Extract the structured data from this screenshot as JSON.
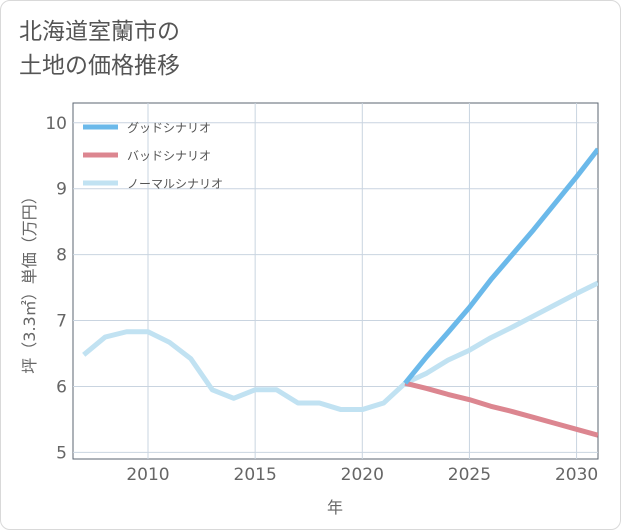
{
  "title_lines": [
    "北海道室蘭市の",
    "土地の価格推移"
  ],
  "chart_data": {
    "type": "line",
    "title": "北海道室蘭市の土地の価格推移",
    "xlabel": "年",
    "ylabel": "坪（3.3㎡）単価（万円）",
    "xlim": [
      2006.5,
      2031
    ],
    "ylim": [
      4.9,
      10.3
    ],
    "xticks": [
      2010,
      2015,
      2020,
      2025,
      2030
    ],
    "yticks": [
      5,
      6,
      7,
      8,
      9,
      10
    ],
    "grid": true,
    "legend_position": "top-left",
    "series": [
      {
        "name": "グッドシナリオ",
        "color": "#6bb9ea",
        "x": [
          2022,
          2023,
          2024,
          2025,
          2026,
          2027,
          2028,
          2029,
          2030,
          2031
        ],
        "values": [
          6.05,
          6.45,
          6.82,
          7.2,
          7.62,
          8.0,
          8.38,
          8.78,
          9.18,
          9.6
        ]
      },
      {
        "name": "バッドシナリオ",
        "color": "#dc8690",
        "x": [
          2022,
          2023,
          2024,
          2025,
          2026,
          2027,
          2028,
          2029,
          2030,
          2031
        ],
        "values": [
          6.05,
          5.97,
          5.88,
          5.8,
          5.7,
          5.62,
          5.53,
          5.44,
          5.35,
          5.26
        ]
      },
      {
        "name": "ノーマルシナリオ",
        "color": "#c1e2f2",
        "x": [
          2007,
          2008,
          2009,
          2010,
          2011,
          2012,
          2013,
          2014,
          2015,
          2016,
          2017,
          2018,
          2019,
          2020,
          2021,
          2022,
          2023,
          2024,
          2025,
          2026,
          2027,
          2028,
          2029,
          2030,
          2031
        ],
        "values": [
          6.48,
          6.75,
          6.83,
          6.83,
          6.67,
          6.42,
          5.95,
          5.82,
          5.95,
          5.95,
          5.75,
          5.75,
          5.65,
          5.65,
          5.75,
          6.05,
          6.2,
          6.4,
          6.55,
          6.74,
          6.9,
          7.07,
          7.24,
          7.41,
          7.57
        ]
      }
    ]
  }
}
